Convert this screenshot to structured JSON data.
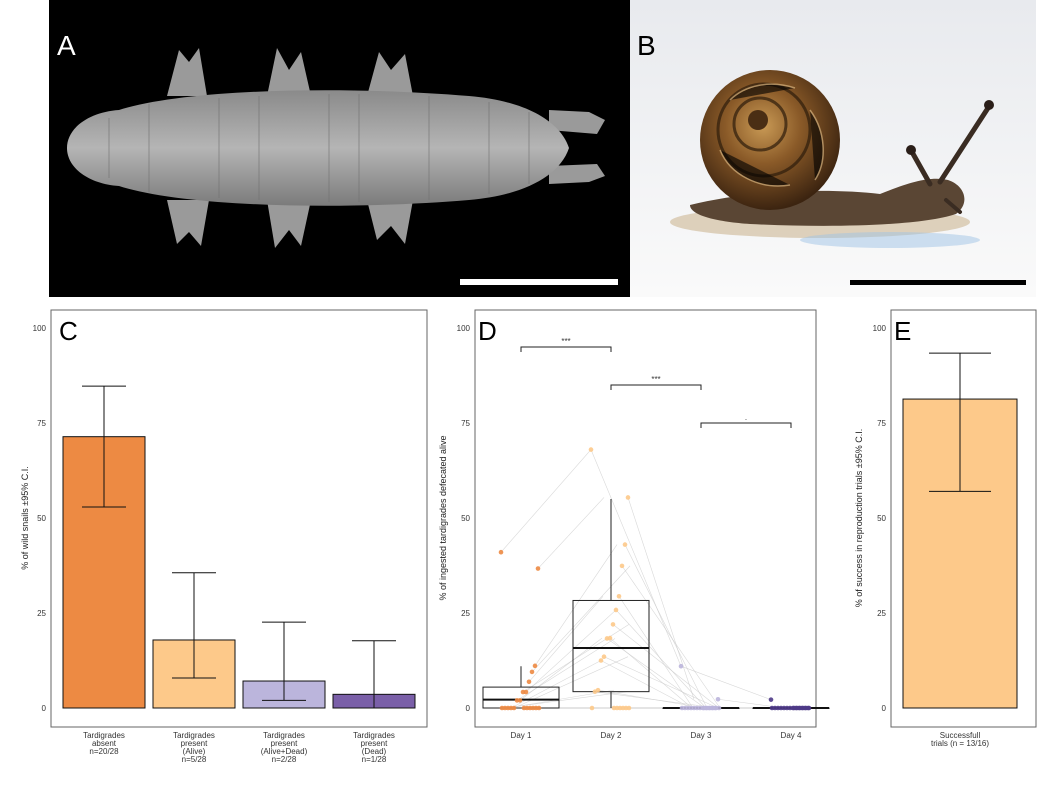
{
  "panels": {
    "A": {
      "letter": "A"
    },
    "B": {
      "letter": "B"
    },
    "C": {
      "letter": "C"
    },
    "D": {
      "letter": "D"
    },
    "E": {
      "letter": "E"
    }
  },
  "colors": {
    "orange": "#ED8A43",
    "light_orange": "#FDC98A",
    "lavender": "#BBB5DC",
    "purple": "#7A5FA8",
    "dark_purple": "#4E3A87",
    "photo_a_bg": "#000000",
    "scale_bar_a": "#ffffff",
    "scale_bar_b": "#000000"
  },
  "chart_data": [
    {
      "panel": "C",
      "type": "bar",
      "ylabel": "% of wild snails ±95% C.I.",
      "ylim": [
        0,
        100
      ],
      "yticks": [
        "0",
        "25",
        "50",
        "75",
        "100"
      ],
      "categories": [
        {
          "lines": [
            "Tardigrades",
            "absent",
            "n=20/28"
          ]
        },
        {
          "lines": [
            "Tardigrades",
            "present",
            "(Alive)",
            "n=5/28"
          ]
        },
        {
          "lines": [
            "Tardigrades",
            "present",
            "(Alive+Dead)",
            "n=2/28"
          ]
        },
        {
          "lines": [
            "Tardigrades",
            "present",
            "(Dead)",
            "n=1/28"
          ]
        }
      ],
      "values": [
        71.4,
        17.9,
        7.1,
        3.6
      ],
      "ci_low": [
        52.9,
        7.9,
        2.0,
        0.0
      ],
      "ci_high": [
        84.7,
        35.6,
        22.6,
        17.7
      ],
      "colors": [
        "#ED8A43",
        "#FDC98A",
        "#BBB5DC",
        "#7A5FA8"
      ]
    },
    {
      "panel": "D",
      "type": "box",
      "ylabel": "% of ingested tardigrades defecated alive",
      "ylim": [
        0,
        100
      ],
      "yticks": [
        "0",
        "25",
        "50",
        "75",
        "100"
      ],
      "categories": [
        "Day 1",
        "Day 2",
        "Day 3",
        "Day 4"
      ],
      "colors": [
        "#ED8A43",
        "#FDC98A",
        "#BBB5DC",
        "#4E3A87"
      ],
      "boxes": [
        {
          "min": 0,
          "q1": 0,
          "median": 2.2,
          "q3": 5.5,
          "max": 11
        },
        {
          "min": 0,
          "q1": 4.3,
          "median": 15.8,
          "q3": 28.3,
          "max": 55
        },
        {
          "min": 0,
          "q1": 0,
          "median": 0,
          "q3": 0,
          "max": 0
        },
        {
          "min": 0,
          "q1": 0,
          "median": 0,
          "q3": 0,
          "max": 0
        }
      ],
      "points": [
        [
          41,
          36.7,
          11.1,
          9.5,
          6.9,
          4.2,
          4.2,
          2.0,
          2.0,
          0,
          0,
          0,
          0,
          0,
          0,
          0,
          0,
          0,
          0,
          0
        ],
        [
          68,
          55.4,
          43,
          37.4,
          29.4,
          25.8,
          22,
          18.4,
          18.3,
          13.5,
          12.5,
          4.7,
          4.3,
          0,
          0,
          0,
          0,
          0,
          0,
          0
        ],
        [
          11,
          2.3,
          0,
          0,
          0,
          0,
          0,
          0,
          0,
          0,
          0,
          0,
          0,
          0,
          0,
          0,
          0,
          0,
          0,
          0
        ],
        [
          2.2,
          0,
          0,
          0,
          0,
          0,
          0,
          0,
          0,
          0,
          0,
          0,
          0,
          0,
          0,
          0,
          0,
          0,
          0,
          0
        ]
      ],
      "significance": [
        {
          "from": 0,
          "to": 1,
          "y": 95,
          "label": "***"
        },
        {
          "from": 1,
          "to": 2,
          "y": 85,
          "label": "***"
        },
        {
          "from": 2,
          "to": 3,
          "y": 75,
          "label": "."
        }
      ]
    },
    {
      "panel": "E",
      "type": "bar",
      "ylabel": "% of success in reproduction trials ±95% C.I.",
      "ylim": [
        0,
        100
      ],
      "yticks": [
        "0",
        "25",
        "50",
        "75",
        "100"
      ],
      "categories": [
        {
          "lines": [
            "Successfull",
            "trials (n = 13/16)"
          ]
        }
      ],
      "values": [
        81.3
      ],
      "ci_low": [
        57.0
      ],
      "ci_high": [
        93.4
      ],
      "colors": [
        "#FDC98A"
      ]
    }
  ]
}
